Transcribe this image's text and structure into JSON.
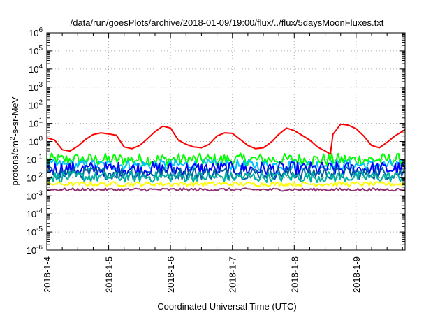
{
  "chart_data": {
    "type": "line",
    "title": "/data/run/goesPlots/archive/2018-01-09/19:00/flux/../flux/5daysMoonFluxes.txt",
    "xlabel": "Coordinated Universal Time (UTC)",
    "ylabel": {
      "pre": "protons/cm",
      "sup": "2",
      "post": "-s-sr-MeV"
    },
    "yscale": "log",
    "ylim": [
      1e-06,
      1000000.0
    ],
    "xlim": [
      "2018-01-04 00:00",
      "2018-01-09 19:00"
    ],
    "grid": true,
    "legend": "none",
    "x_ticks": [
      "2018-1-4",
      "2018-1-5",
      "2018-1-6",
      "2018-1-7",
      "2018-1-8",
      "2018-1-9"
    ],
    "y_ticks": [
      {
        "base": "10",
        "exp": "-6"
      },
      {
        "base": "10",
        "exp": "-5"
      },
      {
        "base": "10",
        "exp": "-4"
      },
      {
        "base": "10",
        "exp": "-3"
      },
      {
        "base": "10",
        "exp": "-2"
      },
      {
        "base": "10",
        "exp": "-1"
      },
      {
        "base": "10",
        "exp": "0"
      },
      {
        "base": "10",
        "exp": "1"
      },
      {
        "base": "10",
        "exp": "2"
      },
      {
        "base": "10",
        "exp": "3"
      },
      {
        "base": "10",
        "exp": "4"
      },
      {
        "base": "10",
        "exp": "5"
      },
      {
        "base": "10",
        "exp": "6"
      }
    ],
    "series": [
      {
        "color": "#ff0000",
        "x": [
          "2018-01-04 00:00",
          "2018-01-04 03:00",
          "2018-01-04 06:00",
          "2018-01-04 09:00",
          "2018-01-04 12:00",
          "2018-01-04 15:00",
          "2018-01-04 18:00",
          "2018-01-04 21:00",
          "2018-01-05 00:00",
          "2018-01-05 03:00",
          "2018-01-05 06:00",
          "2018-01-05 09:00",
          "2018-01-05 12:00",
          "2018-01-05 15:00",
          "2018-01-05 18:00",
          "2018-01-05 21:00",
          "2018-01-06 00:00",
          "2018-01-06 03:00",
          "2018-01-06 06:00",
          "2018-01-06 09:00",
          "2018-01-06 12:00",
          "2018-01-06 15:00",
          "2018-01-06 18:00",
          "2018-01-06 21:00",
          "2018-01-07 00:00",
          "2018-01-07 03:00",
          "2018-01-07 06:00",
          "2018-01-07 09:00",
          "2018-01-07 12:00",
          "2018-01-07 15:00",
          "2018-01-07 18:00",
          "2018-01-07 21:00",
          "2018-01-08 00:00",
          "2018-01-08 03:00",
          "2018-01-08 06:00",
          "2018-01-08 09:00",
          "2018-01-08 12:00",
          "2018-01-08 14:00",
          "2018-01-08 15:00",
          "2018-01-08 18:00",
          "2018-01-08 21:00",
          "2018-01-09 00:00",
          "2018-01-09 03:00",
          "2018-01-09 06:00",
          "2018-01-09 09:00",
          "2018-01-09 12:00",
          "2018-01-09 15:00",
          "2018-01-09 19:00"
        ],
        "values": [
          1.6,
          1.2,
          0.35,
          0.3,
          0.55,
          1.3,
          2.4,
          3.0,
          2.6,
          2.2,
          0.5,
          0.4,
          0.6,
          1.4,
          3.5,
          7.0,
          5.5,
          1.2,
          0.7,
          0.5,
          0.45,
          0.7,
          2.0,
          3.0,
          2.8,
          1.3,
          0.6,
          0.4,
          0.45,
          0.9,
          2.5,
          5.5,
          4.0,
          2.2,
          1.2,
          0.5,
          0.3,
          0.2,
          2.5,
          9.0,
          8.0,
          5.0,
          2.0,
          0.6,
          0.45,
          0.9,
          2.0,
          4.5
        ]
      },
      {
        "color": "#00ff00",
        "level": 0.1,
        "spread": 0.35
      },
      {
        "color": "#00c0ff",
        "level": 0.05,
        "spread": 0.3
      },
      {
        "color": "#0000ff",
        "level": 0.03,
        "spread": 0.4
      },
      {
        "color": "#0060a0",
        "level": 0.018,
        "spread": 0.35
      },
      {
        "color": "#00b0a0",
        "level": 0.011,
        "spread": 0.3
      },
      {
        "color": "#ffff00",
        "level": 0.0045,
        "spread": 0.12
      },
      {
        "color": "#903070",
        "level": 0.0022,
        "spread": 0.08
      }
    ]
  }
}
